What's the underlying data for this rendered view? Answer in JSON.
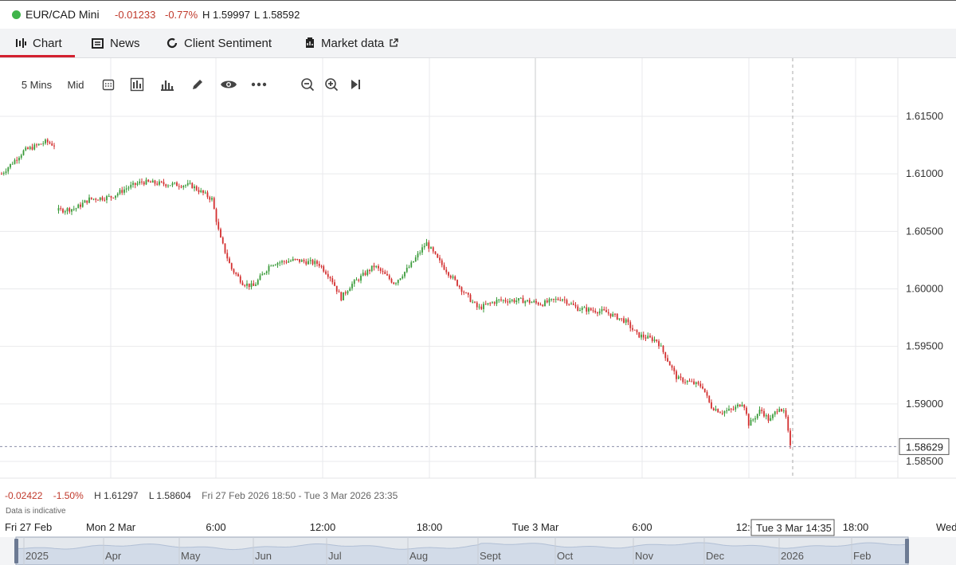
{
  "header": {
    "instrument": "EUR/CAD Mini",
    "change": "-0.01233",
    "change_pct": "-0.77%",
    "high": "H 1.59997",
    "low": "L 1.58592",
    "status_color": "#3fb44a"
  },
  "tabs": [
    {
      "label": "Chart",
      "icon": "chart-icon",
      "active": true
    },
    {
      "label": "News",
      "icon": "news-icon"
    },
    {
      "label": "Client Sentiment",
      "icon": "sentiment-icon"
    },
    {
      "label": "Market data",
      "icon": "market-data-icon",
      "external": true
    }
  ],
  "toolbar": {
    "interval": "5 Mins",
    "price_type": "Mid",
    "tools": [
      "calendar-icon",
      "chart-type-icon",
      "indicators-icon",
      "draw-icon",
      "eye-icon",
      "more-icon",
      "zoom-out-icon",
      "zoom-in-icon",
      "jump-to-latest-icon"
    ]
  },
  "stats": {
    "change": "-0.02422",
    "change_pct": "-1.50%",
    "high": "H 1.61297",
    "low": "L 1.58604",
    "range": "Fri 27 Feb 2026 18:50 - Tue 3 Mar 2026 23:35"
  },
  "note": "Data is indicative",
  "crosshair_time": "Tue 3 Mar 14:35",
  "current_price": "1.58629",
  "chart_data": {
    "type": "line",
    "subtype": "candlestick",
    "y_ticks": [
      "1.61500",
      "1.61000",
      "1.60500",
      "1.60000",
      "1.59500",
      "1.59000",
      "1.58500"
    ],
    "ylim": [
      1.5835,
      1.618
    ],
    "x_ticks": [
      "Fri 27 Feb",
      "Mon 2 Mar",
      "6:00",
      "12:00",
      "18:00",
      "Tue 3 Mar",
      "6:00",
      "12:00",
      "18:00",
      "Wed"
    ],
    "up_color": "#3a9b3a",
    "down_color": "#d32f2f",
    "series": [
      {
        "x": [
          "27 Feb 18:50",
          "27 Feb 21:00",
          "27 Feb 23:00",
          "2 Mar 00:00",
          "2 Mar 02:00",
          "2 Mar 04:00",
          "2 Mar 06:00",
          "2 Mar 07:00",
          "2 Mar 08:00",
          "2 Mar 09:00",
          "2 Mar 10:00",
          "2 Mar 11:00",
          "2 Mar 12:00",
          "2 Mar 13:00",
          "2 Mar 14:00",
          "2 Mar 15:00",
          "2 Mar 16:00",
          "2 Mar 17:30",
          "2 Mar 18:00",
          "2 Mar 19:00",
          "2 Mar 20:00",
          "2 Mar 21:00",
          "2 Mar 22:00",
          "2 Mar 23:00",
          "3 Mar 00:00",
          "3 Mar 01:00",
          "3 Mar 02:00",
          "3 Mar 03:00",
          "3 Mar 04:00",
          "3 Mar 05:00",
          "3 Mar 06:00",
          "3 Mar 07:00",
          "3 Mar 08:00",
          "3 Mar 09:00",
          "3 Mar 10:00",
          "3 Mar 11:00",
          "3 Mar 12:00",
          "3 Mar 13:00",
          "3 Mar 14:00",
          "3 Mar 14:35"
        ],
        "values": [
          1.61,
          1.612,
          1.6128,
          1.6065,
          1.6075,
          1.6092,
          1.6082,
          1.6035,
          1.601,
          1.6025,
          1.6025,
          1.6022,
          1.5998,
          1.601,
          1.6018,
          1.6005,
          1.602,
          1.604,
          1.6025,
          1.6,
          1.5983,
          1.599,
          1.5992,
          1.599,
          1.5985,
          1.5988,
          1.5982,
          1.5978,
          1.5958,
          1.595,
          1.593,
          1.5918,
          1.5905,
          1.5893,
          1.5898,
          1.5885,
          1.589,
          1.5895,
          1.588,
          1.58629
        ]
      }
    ]
  },
  "navigator": {
    "labels": [
      "2025",
      "Apr",
      "May",
      "Jun",
      "Jul",
      "Aug",
      "Sept",
      "Oct",
      "Nov",
      "Dec",
      "2026",
      "Feb"
    ]
  }
}
